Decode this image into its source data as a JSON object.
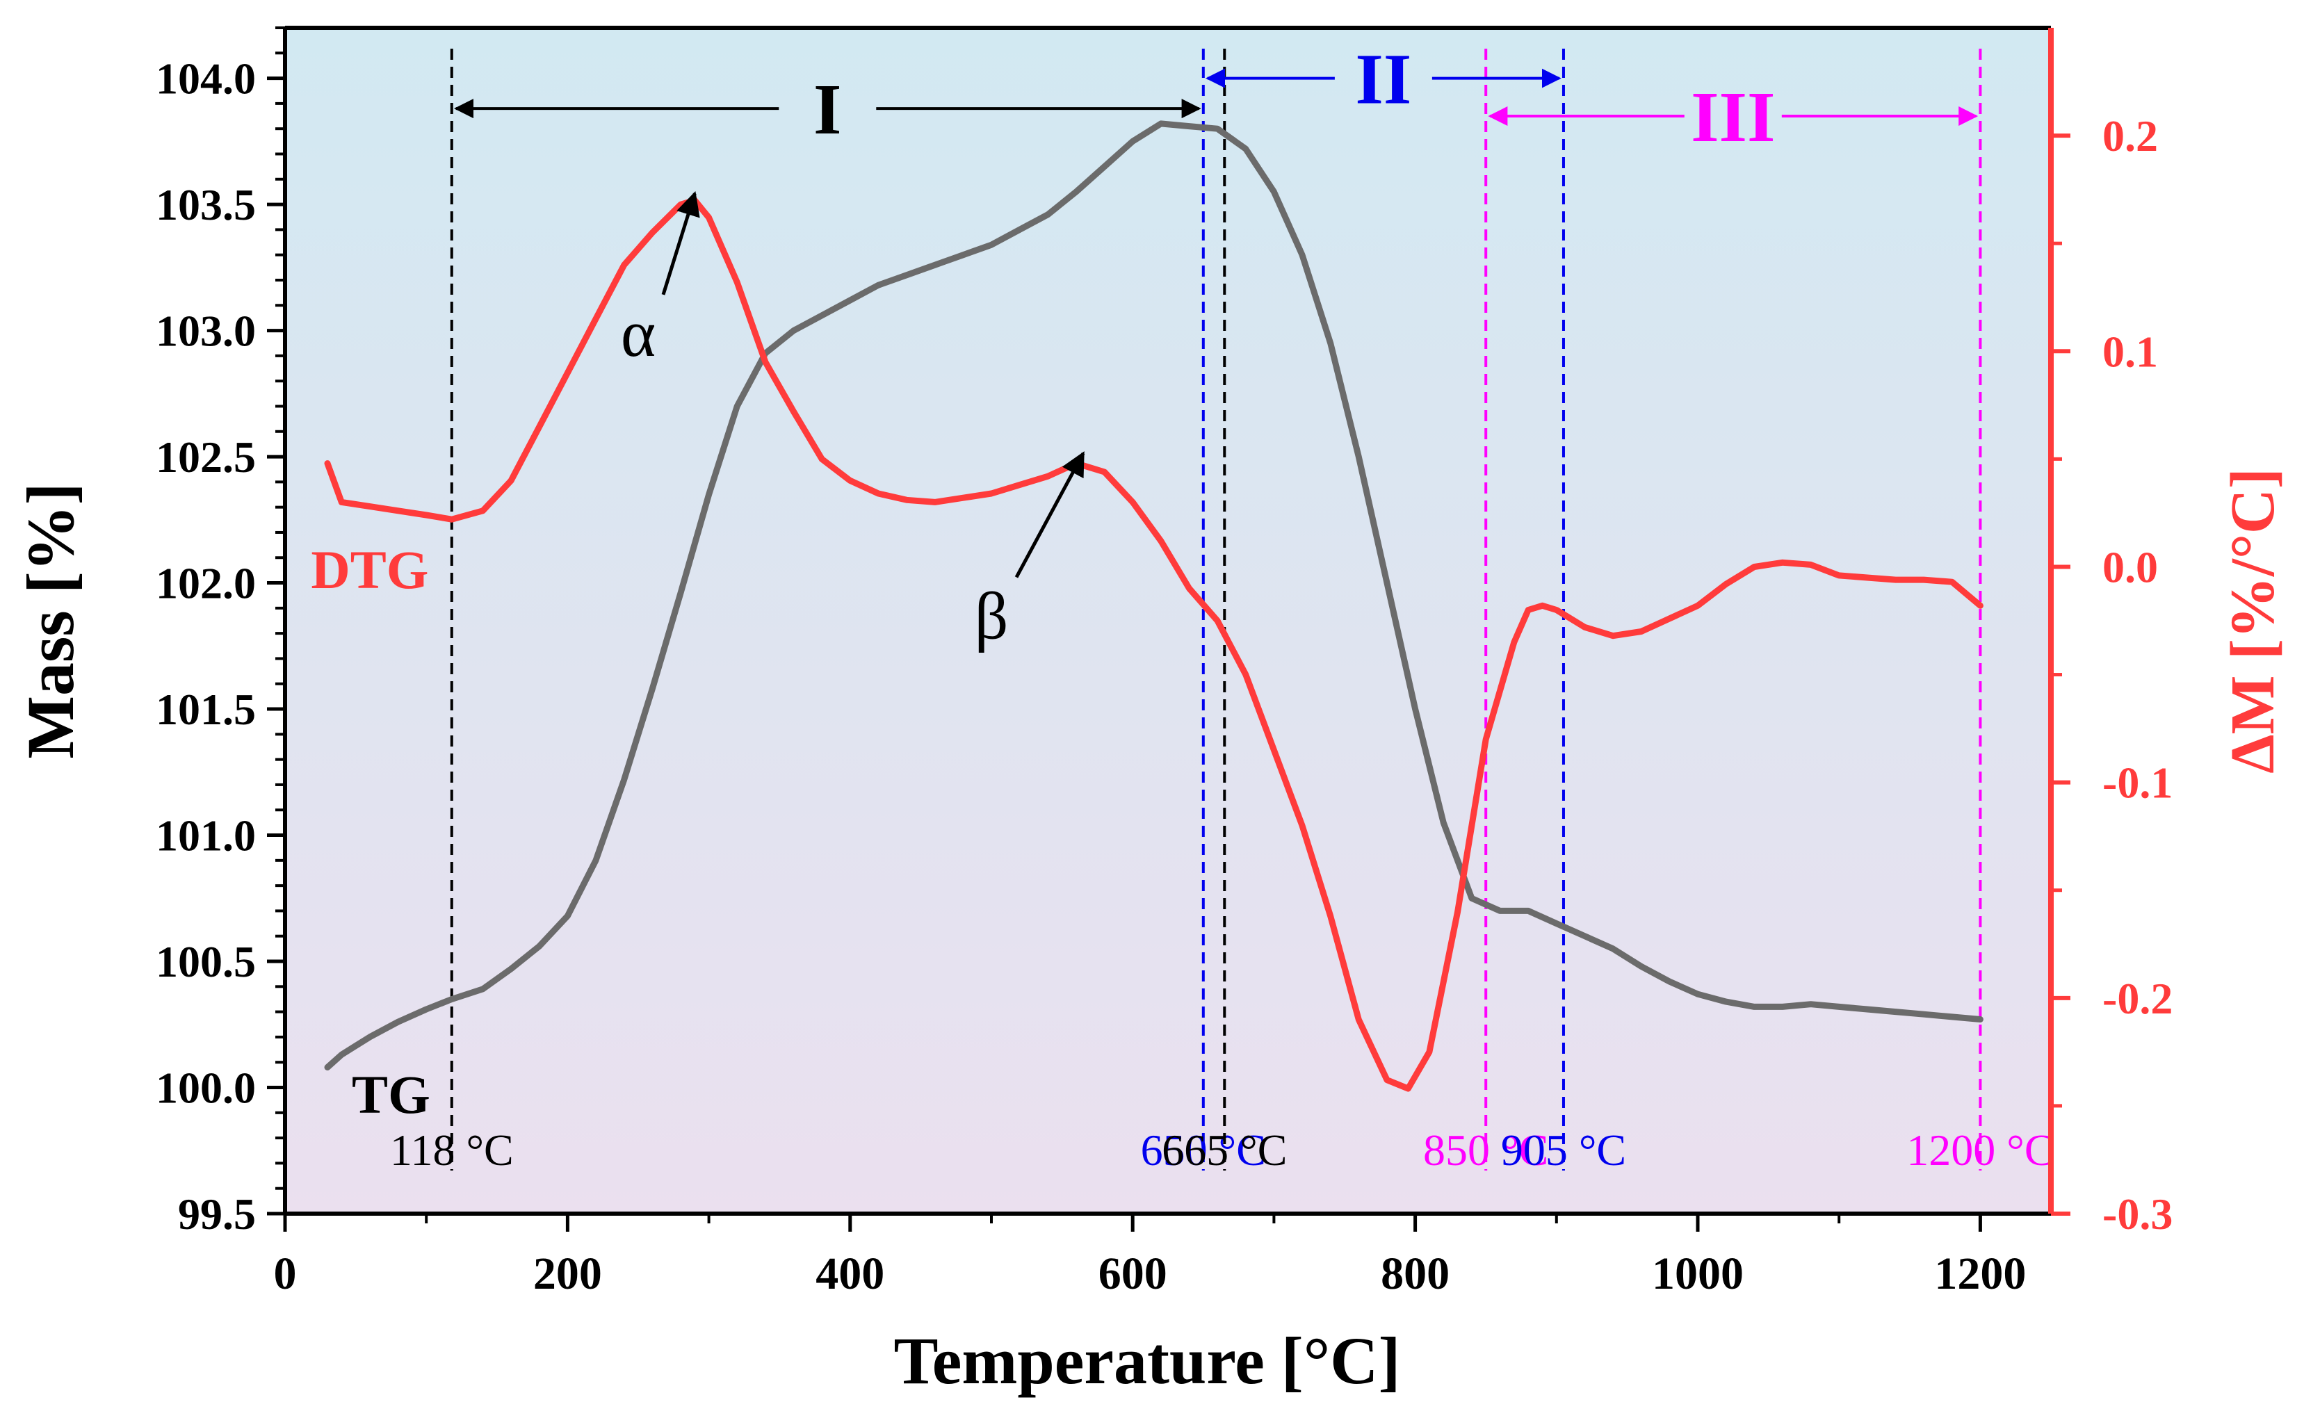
{
  "chart_data": {
    "type": "line",
    "xlabel": "Temperature [°C]",
    "ylabel": "Mass [%]",
    "y2label": "ΔM [%/°C]",
    "xlim": [
      0,
      1250
    ],
    "ylim": [
      99.5,
      104.2
    ],
    "y2lim": [
      -0.3,
      0.25
    ],
    "xticks": [
      0,
      200,
      400,
      600,
      800,
      1000,
      1200
    ],
    "xtick_labels": [
      "0",
      "200",
      "400",
      "600",
      "800",
      "1000",
      "1200"
    ],
    "yticks": [
      99.5,
      100.0,
      100.5,
      101.0,
      101.5,
      102.0,
      102.5,
      103.0,
      103.5,
      104.0
    ],
    "ytick_labels": [
      "99.5",
      "100.0",
      "100.5",
      "101.0",
      "101.5",
      "102.0",
      "102.5",
      "103.0",
      "103.5",
      "104.0"
    ],
    "y2ticks": [
      -0.3,
      -0.2,
      -0.1,
      0.0,
      0.1,
      0.2
    ],
    "y2tick_labels": [
      "-0.3",
      "-0.2",
      "-0.1",
      "0.0",
      "0.1",
      "0.2"
    ],
    "colors": {
      "tg": "#6b6b6b",
      "dtg": "#ff3b3b",
      "stage1": "#000000",
      "stage2": "#0000ee",
      "stage3": "#ff00ff",
      "bg_top": "#d2e9f2",
      "bg_bottom": "#ebe0ef"
    },
    "series": [
      {
        "name": "TG",
        "axis": "left",
        "x": [
          30,
          40,
          60,
          80,
          100,
          118,
          140,
          160,
          180,
          200,
          220,
          240,
          260,
          280,
          300,
          320,
          340,
          360,
          380,
          400,
          420,
          440,
          460,
          480,
          500,
          520,
          540,
          560,
          580,
          600,
          620,
          640,
          660,
          680,
          700,
          720,
          740,
          760,
          780,
          800,
          820,
          840,
          860,
          880,
          900,
          920,
          940,
          960,
          980,
          1000,
          1020,
          1040,
          1060,
          1080,
          1100,
          1120,
          1140,
          1160,
          1180,
          1200
        ],
        "y": [
          100.08,
          100.13,
          100.2,
          100.26,
          100.31,
          100.35,
          100.39,
          100.47,
          100.56,
          100.68,
          100.9,
          101.22,
          101.58,
          101.96,
          102.35,
          102.7,
          102.91,
          103.0,
          103.06,
          103.12,
          103.18,
          103.22,
          103.26,
          103.3,
          103.34,
          103.4,
          103.46,
          103.55,
          103.65,
          103.75,
          103.82,
          103.81,
          103.8,
          103.72,
          103.55,
          103.3,
          102.95,
          102.5,
          102.0,
          101.5,
          101.05,
          100.75,
          100.7,
          100.7,
          100.65,
          100.6,
          100.55,
          100.48,
          100.42,
          100.37,
          100.34,
          100.32,
          100.32,
          100.33,
          100.32,
          100.31,
          100.3,
          100.29,
          100.28,
          100.27
        ]
      },
      {
        "name": "DTG",
        "axis": "right",
        "x": [
          30,
          40,
          60,
          80,
          100,
          118,
          140,
          160,
          180,
          200,
          220,
          240,
          260,
          280,
          290,
          300,
          320,
          340,
          360,
          380,
          400,
          420,
          440,
          460,
          480,
          500,
          520,
          540,
          560,
          580,
          600,
          620,
          640,
          660,
          680,
          700,
          720,
          740,
          760,
          780,
          795,
          810,
          830,
          850,
          870,
          880,
          890,
          900,
          920,
          940,
          960,
          980,
          1000,
          1020,
          1040,
          1060,
          1080,
          1100,
          1120,
          1140,
          1160,
          1180,
          1200
        ],
        "y": [
          0.048,
          0.03,
          0.028,
          0.026,
          0.024,
          0.022,
          0.026,
          0.04,
          0.065,
          0.09,
          0.115,
          0.14,
          0.155,
          0.168,
          0.17,
          0.162,
          0.132,
          0.095,
          0.072,
          0.05,
          0.04,
          0.034,
          0.031,
          0.03,
          0.032,
          0.034,
          0.038,
          0.042,
          0.048,
          0.044,
          0.03,
          0.012,
          -0.01,
          -0.025,
          -0.05,
          -0.085,
          -0.12,
          -0.162,
          -0.21,
          -0.238,
          -0.242,
          -0.225,
          -0.16,
          -0.08,
          -0.035,
          -0.02,
          -0.018,
          -0.02,
          -0.028,
          -0.032,
          -0.03,
          -0.024,
          -0.018,
          -0.008,
          0.0,
          0.002,
          0.001,
          -0.004,
          -0.005,
          -0.006,
          -0.006,
          -0.007,
          -0.018
        ]
      }
    ],
    "vlines": [
      {
        "x": 118,
        "label": "118 °C",
        "stage": "stage1"
      },
      {
        "x": 650,
        "label": "650 °C",
        "stage": "stage2"
      },
      {
        "x": 665,
        "label": "665 °C",
        "stage": "stage1"
      },
      {
        "x": 850,
        "label": "850 °C",
        "stage": "stage3"
      },
      {
        "x": 905,
        "label": "905 °C",
        "stage": "stage2"
      },
      {
        "x": 1200,
        "label": "1200 °C",
        "stage": "stage3"
      }
    ],
    "regions": [
      {
        "label": "I",
        "from": 118,
        "to": 650,
        "y": 103.88,
        "stage": "stage1"
      },
      {
        "label": "II",
        "from": 650,
        "to": 905,
        "y": 104.0,
        "stage": "stage2"
      },
      {
        "label": "III",
        "from": 850,
        "to": 1200,
        "y": 103.85,
        "stage": "stage3"
      }
    ],
    "annotations": [
      {
        "text": "α",
        "tx": 250,
        "ty": 102.9,
        "ax": 290,
        "ay": 103.56
      },
      {
        "text": "β",
        "tx": 500,
        "ty": 101.78,
        "ax": 565,
        "ay": 102.53
      }
    ],
    "series_labels": [
      {
        "text": "DTG",
        "x": 60,
        "y": 101.98,
        "stage": "dtg"
      },
      {
        "text": "TG",
        "x": 75,
        "y": 99.9,
        "stage": "stage1"
      }
    ]
  }
}
